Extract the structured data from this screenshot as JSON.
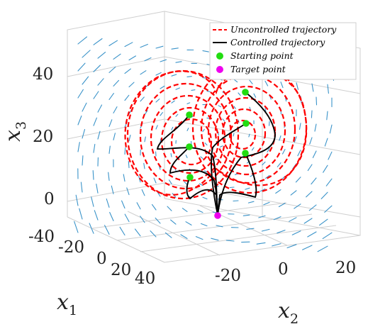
{
  "chart_data": {
    "type": "line",
    "projection": "3d",
    "axes": {
      "x1": {
        "label": "x",
        "subscript": "1",
        "ticks": [
          "-40",
          "-20",
          "0",
          "20",
          "40"
        ],
        "range": [
          -40,
          40
        ]
      },
      "x2": {
        "label": "x",
        "subscript": "2",
        "ticks": [
          "-20",
          "0",
          "20"
        ],
        "range": [
          -30,
          25
        ]
      },
      "x3": {
        "label": "x",
        "subscript": "3",
        "ticks": [
          "0",
          "20",
          "40"
        ],
        "range": [
          0,
          50
        ]
      }
    },
    "grid": true,
    "legend": {
      "position": "top-right",
      "entries": [
        {
          "label": "Uncontrolled trajectory",
          "style": "dashed",
          "color": "#ff0000"
        },
        {
          "label": "Controlled trajectory",
          "style": "solid",
          "color": "#000000"
        },
        {
          "label": "Starting point",
          "style": "marker",
          "color": "#22dd11"
        },
        {
          "label": "Target point",
          "style": "marker",
          "color": "#ee00ee"
        }
      ]
    },
    "vector_field_color": "#3a93c9",
    "series": [
      {
        "name": "Uncontrolled trajectory",
        "kind": "lorenz-attractor"
      },
      {
        "name": "Controlled trajectory",
        "kind": "paths-to-target"
      }
    ],
    "starting_points_count": 6,
    "target_point_count": 1
  }
}
